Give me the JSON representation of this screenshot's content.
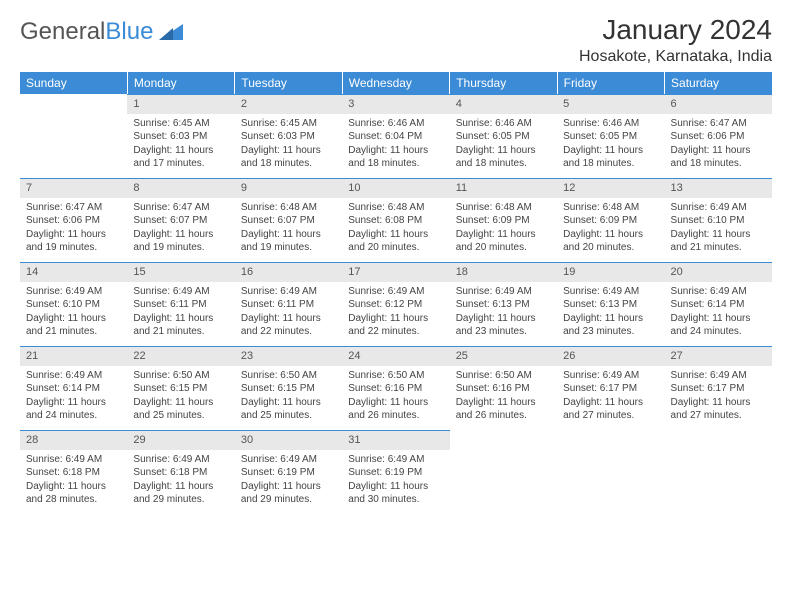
{
  "brand": {
    "part1": "General",
    "part2": "Blue"
  },
  "title": "January 2024",
  "location": "Hosakote, Karnataka, India",
  "colors": {
    "header_bg": "#3b8bd6",
    "header_text": "#ffffff",
    "daynum_bg": "#e8e8e8",
    "daynum_text": "#555555",
    "body_text": "#444444",
    "rule": "#3b8bd6",
    "background": "#ffffff"
  },
  "typography": {
    "title_fontsize": 28,
    "location_fontsize": 16,
    "header_fontsize": 12,
    "daynum_fontsize": 11,
    "body_fontsize": 10
  },
  "weekdays": [
    "Sunday",
    "Monday",
    "Tuesday",
    "Wednesday",
    "Thursday",
    "Friday",
    "Saturday"
  ],
  "weeks": [
    [
      null,
      {
        "n": "1",
        "sr": "6:45 AM",
        "ss": "6:03 PM",
        "dl": "11 hours and 17 minutes."
      },
      {
        "n": "2",
        "sr": "6:45 AM",
        "ss": "6:03 PM",
        "dl": "11 hours and 18 minutes."
      },
      {
        "n": "3",
        "sr": "6:46 AM",
        "ss": "6:04 PM",
        "dl": "11 hours and 18 minutes."
      },
      {
        "n": "4",
        "sr": "6:46 AM",
        "ss": "6:05 PM",
        "dl": "11 hours and 18 minutes."
      },
      {
        "n": "5",
        "sr": "6:46 AM",
        "ss": "6:05 PM",
        "dl": "11 hours and 18 minutes."
      },
      {
        "n": "6",
        "sr": "6:47 AM",
        "ss": "6:06 PM",
        "dl": "11 hours and 18 minutes."
      }
    ],
    [
      {
        "n": "7",
        "sr": "6:47 AM",
        "ss": "6:06 PM",
        "dl": "11 hours and 19 minutes."
      },
      {
        "n": "8",
        "sr": "6:47 AM",
        "ss": "6:07 PM",
        "dl": "11 hours and 19 minutes."
      },
      {
        "n": "9",
        "sr": "6:48 AM",
        "ss": "6:07 PM",
        "dl": "11 hours and 19 minutes."
      },
      {
        "n": "10",
        "sr": "6:48 AM",
        "ss": "6:08 PM",
        "dl": "11 hours and 20 minutes."
      },
      {
        "n": "11",
        "sr": "6:48 AM",
        "ss": "6:09 PM",
        "dl": "11 hours and 20 minutes."
      },
      {
        "n": "12",
        "sr": "6:48 AM",
        "ss": "6:09 PM",
        "dl": "11 hours and 20 minutes."
      },
      {
        "n": "13",
        "sr": "6:49 AM",
        "ss": "6:10 PM",
        "dl": "11 hours and 21 minutes."
      }
    ],
    [
      {
        "n": "14",
        "sr": "6:49 AM",
        "ss": "6:10 PM",
        "dl": "11 hours and 21 minutes."
      },
      {
        "n": "15",
        "sr": "6:49 AM",
        "ss": "6:11 PM",
        "dl": "11 hours and 21 minutes."
      },
      {
        "n": "16",
        "sr": "6:49 AM",
        "ss": "6:11 PM",
        "dl": "11 hours and 22 minutes."
      },
      {
        "n": "17",
        "sr": "6:49 AM",
        "ss": "6:12 PM",
        "dl": "11 hours and 22 minutes."
      },
      {
        "n": "18",
        "sr": "6:49 AM",
        "ss": "6:13 PM",
        "dl": "11 hours and 23 minutes."
      },
      {
        "n": "19",
        "sr": "6:49 AM",
        "ss": "6:13 PM",
        "dl": "11 hours and 23 minutes."
      },
      {
        "n": "20",
        "sr": "6:49 AM",
        "ss": "6:14 PM",
        "dl": "11 hours and 24 minutes."
      }
    ],
    [
      {
        "n": "21",
        "sr": "6:49 AM",
        "ss": "6:14 PM",
        "dl": "11 hours and 24 minutes."
      },
      {
        "n": "22",
        "sr": "6:50 AM",
        "ss": "6:15 PM",
        "dl": "11 hours and 25 minutes."
      },
      {
        "n": "23",
        "sr": "6:50 AM",
        "ss": "6:15 PM",
        "dl": "11 hours and 25 minutes."
      },
      {
        "n": "24",
        "sr": "6:50 AM",
        "ss": "6:16 PM",
        "dl": "11 hours and 26 minutes."
      },
      {
        "n": "25",
        "sr": "6:50 AM",
        "ss": "6:16 PM",
        "dl": "11 hours and 26 minutes."
      },
      {
        "n": "26",
        "sr": "6:49 AM",
        "ss": "6:17 PM",
        "dl": "11 hours and 27 minutes."
      },
      {
        "n": "27",
        "sr": "6:49 AM",
        "ss": "6:17 PM",
        "dl": "11 hours and 27 minutes."
      }
    ],
    [
      {
        "n": "28",
        "sr": "6:49 AM",
        "ss": "6:18 PM",
        "dl": "11 hours and 28 minutes."
      },
      {
        "n": "29",
        "sr": "6:49 AM",
        "ss": "6:18 PM",
        "dl": "11 hours and 29 minutes."
      },
      {
        "n": "30",
        "sr": "6:49 AM",
        "ss": "6:19 PM",
        "dl": "11 hours and 29 minutes."
      },
      {
        "n": "31",
        "sr": "6:49 AM",
        "ss": "6:19 PM",
        "dl": "11 hours and 30 minutes."
      },
      null,
      null,
      null
    ]
  ],
  "labels": {
    "sunrise": "Sunrise:",
    "sunset": "Sunset:",
    "daylight": "Daylight:"
  }
}
